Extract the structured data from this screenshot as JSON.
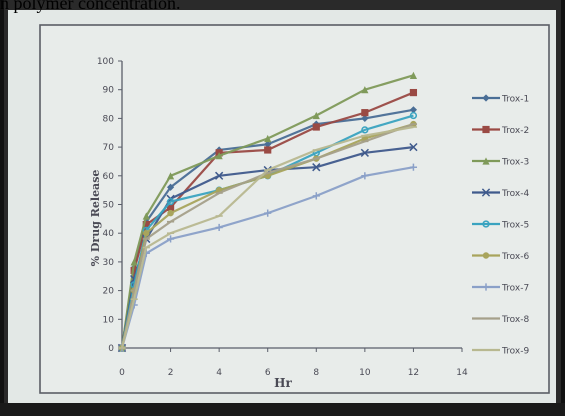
{
  "caption": "n polymer concentration.",
  "chart_data": {
    "type": "line",
    "ylabel": "% Drug Release",
    "xlabel": "Hr",
    "xlim": [
      0,
      14
    ],
    "ylim": [
      0,
      100
    ],
    "xticks": [
      0,
      2,
      4,
      6,
      8,
      10,
      12,
      14
    ],
    "yticks": [
      0,
      10,
      20,
      30,
      40,
      50,
      60,
      70,
      80,
      90,
      100
    ],
    "grid": false,
    "legend_position": "right",
    "x": [
      0,
      0.5,
      1,
      2,
      4,
      6,
      8,
      10,
      12
    ],
    "series": [
      {
        "name": "Trox-1",
        "color": "#4a6e96",
        "marker": "diamond",
        "values": [
          0,
          28,
          44,
          56,
          69,
          71,
          78,
          80,
          83
        ]
      },
      {
        "name": "Trox-2",
        "color": "#9a4a44",
        "marker": "square",
        "values": [
          0,
          27,
          43,
          49,
          68,
          69,
          77,
          82,
          89
        ]
      },
      {
        "name": "Trox-3",
        "color": "#7f9a5a",
        "marker": "triangle",
        "values": [
          0,
          30,
          46,
          60,
          67,
          73,
          81,
          90,
          95
        ]
      },
      {
        "name": "Trox-4",
        "color": "#3f5a8c",
        "marker": "x",
        "values": [
          0,
          24,
          38,
          52,
          60,
          62,
          63,
          68,
          70
        ]
      },
      {
        "name": "Trox-5",
        "color": "#3aa3c0",
        "marker": "star",
        "values": [
          0,
          22,
          41,
          51,
          55,
          60,
          68,
          76,
          81
        ]
      },
      {
        "name": "Trox-6",
        "color": "#a8a45c",
        "marker": "circle",
        "values": [
          0,
          20,
          40,
          47,
          55,
          60,
          66,
          73,
          78
        ]
      },
      {
        "name": "Trox-7",
        "color": "#8aa0c8",
        "marker": "plus",
        "values": [
          0,
          15,
          33,
          38,
          42,
          47,
          53,
          60,
          63
        ]
      },
      {
        "name": "Trox-8",
        "color": "#a5a08a",
        "marker": "dash",
        "values": [
          0,
          20,
          38,
          44,
          54,
          61,
          66,
          72,
          78
        ]
      },
      {
        "name": "Trox-9",
        "color": "#b8b890",
        "marker": "line",
        "values": [
          0,
          17,
          35,
          40,
          46,
          62,
          69,
          74,
          77
        ]
      }
    ]
  }
}
